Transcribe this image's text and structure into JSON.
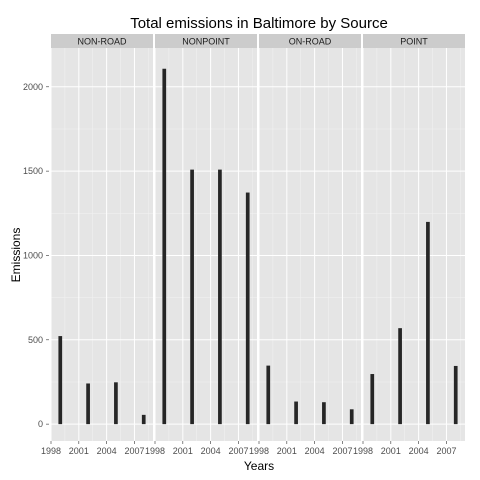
{
  "chart_data": {
    "type": "bar",
    "title": "Total emissions in Baltimore by Source",
    "xlabel": "Years",
    "ylabel": "Emissions",
    "x_ticks": [
      1998,
      2001,
      2004,
      2007
    ],
    "x_tick_labels": [
      "1998",
      "2001",
      "2004",
      "2007"
    ],
    "xlim": [
      1998,
      2009
    ],
    "y_ticks": [
      0,
      500,
      1000,
      1500,
      2000
    ],
    "y_tick_labels": [
      "0",
      "500",
      "1000",
      "1500",
      "2000"
    ],
    "ylim": [
      -100,
      2230
    ],
    "grid": true,
    "categories": [
      1999,
      2002,
      2005,
      2008
    ],
    "facets": [
      {
        "name": "NON-ROAD",
        "values": [
          522,
          241,
          248,
          55
        ]
      },
      {
        "name": "NONPOINT",
        "values": [
          2107,
          1509,
          1509,
          1373
        ]
      },
      {
        "name": "ON-ROAD",
        "values": [
          347,
          134,
          130,
          88
        ]
      },
      {
        "name": "POINT",
        "values": [
          297,
          569,
          1199,
          345
        ]
      }
    ],
    "colors": {
      "panel_background": "#e5e5e5",
      "strip_background": "#cccccc",
      "bar": "#262626",
      "grid_major": "#ffffff",
      "grid_minor": "#f2f2f2"
    }
  }
}
